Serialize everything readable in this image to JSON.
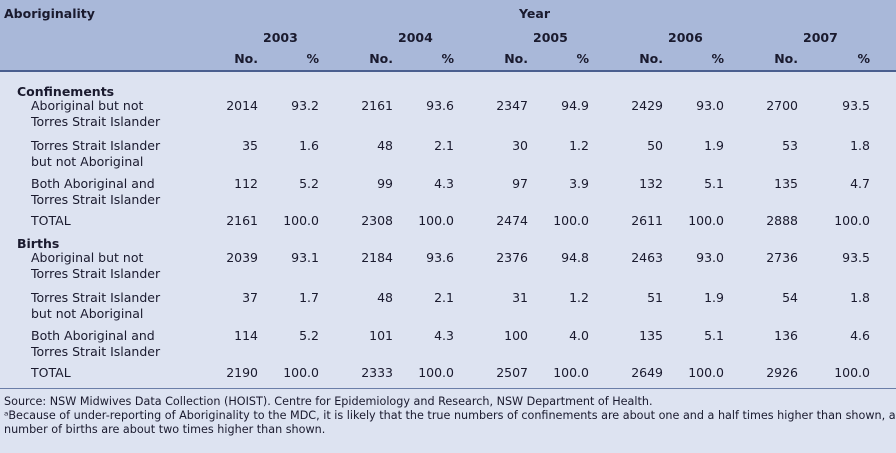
{
  "header": {
    "row_label": "Aboriginality",
    "group_label": "Year",
    "years": [
      "2003",
      "2004",
      "2005",
      "2006",
      "2007"
    ],
    "sub_no": "No.",
    "sub_pct": "%"
  },
  "sections": [
    {
      "title": "Confinements",
      "rows": [
        {
          "label": [
            "Aboriginal but not",
            "Torres Strait Islander"
          ],
          "values": [
            "2014",
            "93.2",
            "2161",
            "93.6",
            "2347",
            "94.9",
            "2429",
            "93.0",
            "2700",
            "93.5"
          ]
        },
        {
          "label": [
            "Torres Strait Islander",
            "but not Aboriginal"
          ],
          "values": [
            "35",
            "1.6",
            "48",
            "2.1",
            "30",
            "1.2",
            "50",
            "1.9",
            "53",
            "1.8"
          ]
        },
        {
          "label": [
            "Both Aboriginal and",
            "Torres Strait Islander"
          ],
          "values": [
            "112",
            "5.2",
            "99",
            "4.3",
            "97",
            "3.9",
            "132",
            "5.1",
            "135",
            "4.7"
          ]
        },
        {
          "label": [
            "TOTAL"
          ],
          "values": [
            "2161",
            "100.0",
            "2308",
            "100.0",
            "2474",
            "100.0",
            "2611",
            "100.0",
            "2888",
            "100.0"
          ]
        }
      ]
    },
    {
      "title": "Births",
      "rows": [
        {
          "label": [
            "Aboriginal but not",
            "Torres Strait Islander"
          ],
          "values": [
            "2039",
            "93.1",
            "2184",
            "93.6",
            "2376",
            "94.8",
            "2463",
            "93.0",
            "2736",
            "93.5"
          ]
        },
        {
          "label": [
            "Torres Strait Islander",
            "but not Aboriginal"
          ],
          "values": [
            "37",
            "1.7",
            "48",
            "2.1",
            "31",
            "1.2",
            "51",
            "1.9",
            "54",
            "1.8"
          ]
        },
        {
          "label": [
            "Both Aboriginal and",
            "Torres Strait Islander"
          ],
          "values": [
            "114",
            "5.2",
            "101",
            "4.3",
            "100",
            "4.0",
            "135",
            "5.1",
            "136",
            "4.6"
          ]
        },
        {
          "label": [
            "TOTAL"
          ],
          "values": [
            "2190",
            "100.0",
            "2333",
            "100.0",
            "2507",
            "100.0",
            "2649",
            "100.0",
            "2926",
            "100.0"
          ]
        }
      ]
    }
  ],
  "footnotes": {
    "source": "Source:  NSW Midwives Data Collection (HOIST). Centre for Epidemiology and Research, NSW Department of Health.",
    "note_line1": "ᵃBecause of under-reporting of Aboriginality to the MDC, it is likely that the true numbers of confinements are about one and a half times higher than shown, and the",
    "note_line2": "number of births are about two times higher than shown."
  }
}
